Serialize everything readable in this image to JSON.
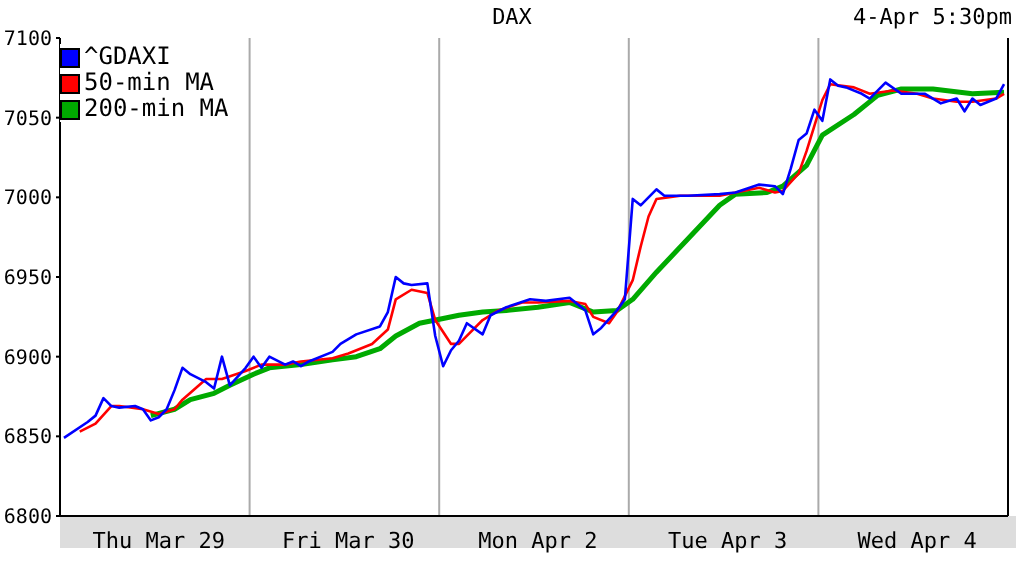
{
  "chart_data": {
    "type": "line",
    "title": "DAX",
    "subtitle": "4-Apr 5:30pm",
    "legend": "top left",
    "grid": true,
    "categories": [
      null,
      null,
      null,
      null,
      null,
      null,
      null,
      null,
      null,
      null,
      null,
      null,
      "Thu Mar 29",
      null,
      null,
      null,
      null,
      null,
      null,
      null,
      null,
      null,
      null,
      null,
      null,
      null,
      null,
      null,
      null,
      null,
      null,
      null,
      null,
      null,
      null,
      null,
      "Fri Mar 30",
      null,
      null,
      null,
      null,
      null,
      null,
      null,
      null,
      null,
      null,
      null,
      null,
      null,
      null,
      null,
      null,
      null,
      null,
      null,
      null,
      null,
      null,
      null,
      "Mon Apr  2",
      null,
      null,
      null,
      null,
      null,
      null,
      null,
      null,
      null,
      null,
      null,
      null,
      null,
      null,
      null,
      null,
      null,
      null,
      null,
      null,
      null,
      null,
      null,
      "Tue Apr  3",
      null,
      null,
      null,
      null,
      null,
      null,
      null,
      null,
      null,
      null,
      null,
      null,
      null,
      null,
      null,
      null,
      null,
      null,
      null,
      null,
      null,
      null,
      null,
      "Wed Apr  4",
      null,
      null,
      null,
      null,
      null,
      null,
      null,
      null,
      null,
      null,
      null
    ],
    "ylim": [
      6800,
      7100
    ],
    "yticks": [
      6800,
      6850,
      6900,
      6950,
      7000,
      7050,
      7100
    ],
    "series": [
      {
        "name": "^GDAXI",
        "color": "#0000ff",
        "values": [
          6849,
          null,
          null,
          6859,
          6863,
          6874,
          6869,
          6868,
          null,
          6869,
          6867,
          6860,
          6862,
          6867,
          6879,
          6893,
          6889,
          null,
          6884,
          6880,
          6900,
          6882,
          null,
          6893,
          6900,
          6893,
          6900,
          null,
          6895,
          6897,
          6894,
          6897,
          null,
          null,
          6903,
          6908,
          null,
          6914,
          null,
          null,
          6919,
          6928,
          6950,
          6946,
          6945,
          null,
          6946,
          6913,
          6894,
          6904,
          6910,
          6921,
          null,
          6914,
          6926,
          null,
          6931,
          null,
          null,
          6936,
          null,
          6935,
          null,
          null,
          6937,
          null,
          6929,
          6914,
          6918,
          null,
          6929,
          6936,
          6999,
          6995,
          null,
          7005,
          7001,
          null,
          null,
          7001,
          null,
          null,
          null,
          7002,
          null,
          7003,
          null,
          null,
          7008,
          null,
          7007,
          7002,
          7018,
          7036,
          7040,
          7055,
          7048,
          7074,
          7070,
          7069,
          null,
          7065,
          7062,
          null,
          7072,
          null,
          7065,
          null,
          null,
          7065,
          null,
          7059,
          null,
          7062,
          7054,
          7062,
          7058,
          null,
          7062,
          7071
        ]
      },
      {
        "name": "50-min MA",
        "color": "#ff0000",
        "values": [
          null,
          null,
          6853,
          null,
          6858,
          null,
          6869,
          6869,
          null,
          null,
          6867,
          null,
          6864,
          null,
          6867,
          6873,
          null,
          null,
          6886,
          null,
          6886,
          null,
          null,
          6891,
          null,
          6895,
          null,
          null,
          6895,
          null,
          6897,
          null,
          null,
          null,
          6899,
          null,
          6902,
          null,
          null,
          6908,
          null,
          6917,
          6936,
          null,
          6942,
          null,
          6940,
          6923,
          null,
          6908,
          6908,
          6913,
          null,
          6923,
          null,
          6929,
          null,
          null,
          6934,
          null,
          6934,
          null,
          null,
          null,
          6935,
          null,
          6933,
          6925,
          null,
          6921,
          6928,
          null,
          6948,
          6969,
          6988,
          6999,
          null,
          null,
          7001,
          null,
          null,
          null,
          null,
          7001,
          null,
          null,
          null,
          null,
          7006,
          null,
          7003,
          7004,
          null,
          7015,
          7029,
          7045,
          7061,
          7071,
          null,
          null,
          7069,
          null,
          7065,
          null,
          null,
          7067,
          null,
          null,
          7065,
          null,
          7062,
          null,
          null,
          7060,
          null,
          7060,
          null,
          null,
          7062,
          7065
        ]
      },
      {
        "name": "200-min MA",
        "color": "#00aa00",
        "values": [
          null,
          null,
          null,
          null,
          null,
          null,
          null,
          null,
          null,
          null,
          null,
          6863,
          null,
          null,
          6867,
          null,
          6873,
          null,
          null,
          6877,
          null,
          6882,
          null,
          null,
          6889,
          null,
          6893,
          null,
          null,
          null,
          6895,
          null,
          null,
          null,
          6898,
          null,
          null,
          6900,
          null,
          null,
          6905,
          null,
          6913,
          null,
          null,
          6921,
          null,
          null,
          6924,
          null,
          6926,
          null,
          null,
          6928,
          null,
          null,
          6929,
          null,
          null,
          null,
          6931,
          null,
          null,
          null,
          6934,
          null,
          null,
          6928,
          null,
          null,
          6929,
          null,
          6936,
          null,
          null,
          6953,
          null,
          null,
          null,
          6974,
          null,
          null,
          null,
          6995,
          null,
          7002,
          null,
          null,
          null,
          7003,
          null,
          7007,
          null,
          null,
          7020,
          null,
          7039,
          null,
          null,
          null,
          7052,
          null,
          null,
          7064,
          null,
          null,
          7068,
          null,
          null,
          null,
          7068,
          null,
          null,
          null,
          null,
          7065,
          null,
          null,
          null,
          7066
        ]
      }
    ]
  }
}
